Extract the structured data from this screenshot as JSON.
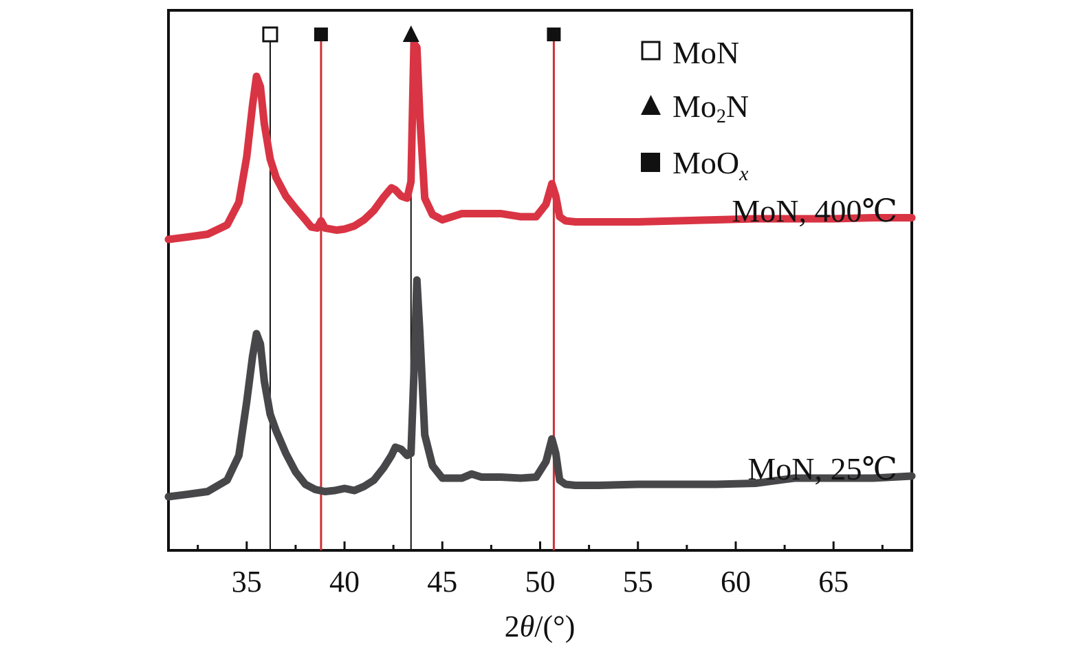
{
  "chart_data": {
    "type": "line",
    "title": "",
    "xlabel": {
      "prefix": "2",
      "symbol": "θ",
      "suffix": "/(°)"
    },
    "ylabel": "",
    "xlim": [
      31,
      69
    ],
    "xticks": [
      35,
      40,
      45,
      50,
      55,
      60,
      65
    ],
    "xtick_labels": [
      "35",
      "40",
      "45",
      "50",
      "55",
      "60",
      "65"
    ],
    "minor_xtick_step": 2.5,
    "y_ticks_shown": false,
    "grid": false,
    "legend": {
      "placement": "top-right",
      "entries": [
        {
          "marker": "open-square",
          "base": "MoN",
          "sub": "",
          "italic_sub": ""
        },
        {
          "marker": "filled-triangle",
          "base": "Mo",
          "sub": "2",
          "tail": "N"
        },
        {
          "marker": "filled-square",
          "base": "MoO",
          "sub": "x",
          "italic_sub": "true"
        }
      ]
    },
    "reference_lines": [
      {
        "x": 36.2,
        "phase": "MoN",
        "marker": "open-square",
        "color": "#111111"
      },
      {
        "x": 38.8,
        "phase": "MoOx",
        "marker": "filled-square",
        "color": "#d02f35"
      },
      {
        "x": 43.4,
        "phase": "Mo2N",
        "marker": "filled-triangle",
        "color": "#111111"
      },
      {
        "x": 50.7,
        "phase": "MoOx",
        "marker": "filled-square",
        "color": "#d02f35"
      }
    ],
    "series": [
      {
        "name": "MoN, 400℃",
        "color": "#d93444",
        "offset": 1.0,
        "x": [
          31.0,
          32.0,
          33.0,
          34.0,
          34.6,
          35.0,
          35.3,
          35.5,
          35.7,
          35.9,
          36.2,
          36.5,
          37.0,
          37.5,
          38.0,
          38.3,
          38.6,
          38.8,
          39.0,
          39.3,
          39.6,
          40.0,
          40.5,
          41.0,
          41.5,
          42.0,
          42.4,
          42.6,
          42.9,
          43.2,
          43.4,
          43.55,
          43.7,
          43.85,
          44.1,
          44.5,
          45.0,
          46.0,
          47.0,
          48.0,
          49.0,
          49.8,
          50.3,
          50.6,
          50.8,
          51.0,
          51.3,
          51.8,
          53.0,
          55.0,
          57.0,
          59.0,
          61.0,
          63.0,
          65.0,
          67.0,
          69.0
        ],
        "y": [
          0.0,
          0.012,
          0.025,
          0.07,
          0.18,
          0.4,
          0.65,
          0.79,
          0.74,
          0.56,
          0.39,
          0.3,
          0.21,
          0.15,
          0.095,
          0.06,
          0.055,
          0.09,
          0.055,
          0.05,
          0.045,
          0.05,
          0.065,
          0.095,
          0.14,
          0.205,
          0.25,
          0.24,
          0.21,
          0.2,
          0.28,
          0.95,
          0.93,
          0.6,
          0.2,
          0.12,
          0.095,
          0.125,
          0.125,
          0.125,
          0.11,
          0.11,
          0.17,
          0.27,
          0.21,
          0.11,
          0.09,
          0.085,
          0.085,
          0.085,
          0.09,
          0.095,
          0.1,
          0.1,
          0.1,
          0.105,
          0.105
        ]
      },
      {
        "name": "MoN, 25℃",
        "color": "#474649",
        "offset": 0.0,
        "x": [
          31.0,
          32.0,
          33.0,
          34.0,
          34.6,
          35.0,
          35.3,
          35.5,
          35.7,
          35.9,
          36.2,
          36.5,
          37.0,
          37.5,
          38.0,
          38.5,
          39.0,
          39.5,
          40.0,
          40.5,
          41.0,
          41.5,
          42.0,
          42.4,
          42.6,
          42.9,
          43.2,
          43.4,
          43.55,
          43.7,
          43.85,
          44.1,
          44.5,
          45.0,
          46.0,
          46.5,
          47.0,
          48.0,
          49.0,
          49.8,
          50.3,
          50.6,
          50.8,
          51.0,
          51.3,
          51.8,
          53.0,
          55.0,
          57.0,
          59.0,
          61.0,
          63.0,
          65.0,
          67.0,
          69.0
        ],
        "y": [
          0.0,
          0.012,
          0.025,
          0.08,
          0.2,
          0.46,
          0.68,
          0.79,
          0.74,
          0.56,
          0.4,
          0.32,
          0.21,
          0.12,
          0.06,
          0.035,
          0.025,
          0.03,
          0.04,
          0.03,
          0.05,
          0.08,
          0.14,
          0.2,
          0.24,
          0.23,
          0.2,
          0.21,
          0.6,
          1.05,
          0.8,
          0.3,
          0.15,
          0.09,
          0.09,
          0.11,
          0.095,
          0.095,
          0.09,
          0.095,
          0.17,
          0.28,
          0.21,
          0.08,
          0.06,
          0.055,
          0.055,
          0.06,
          0.06,
          0.06,
          0.065,
          0.09,
          0.09,
          0.09,
          0.1
        ]
      }
    ]
  }
}
